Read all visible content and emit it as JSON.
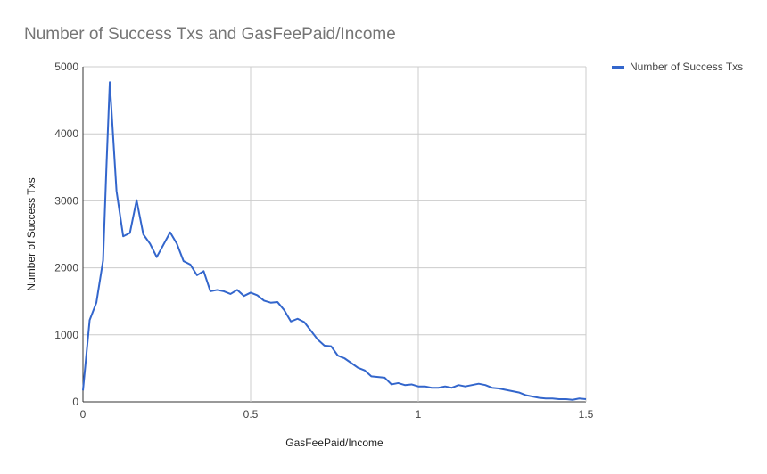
{
  "chart_data": {
    "type": "line",
    "title": "Number of Success Txs and GasFeePaid/Income",
    "xlabel": "GasFeePaid/Income",
    "ylabel": "Number of Success Txs",
    "xlim": [
      0,
      1.5
    ],
    "ylim": [
      0,
      5000
    ],
    "x_ticks": [
      "0",
      "0.5",
      "1",
      "1.5"
    ],
    "y_ticks": [
      "0",
      "1000",
      "2000",
      "3000",
      "4000",
      "5000"
    ],
    "grid": true,
    "legend_position": "right",
    "series": [
      {
        "name": "Number of Success Txs",
        "color": "#3366cc",
        "x": [
          0,
          0.02,
          0.04,
          0.06,
          0.07,
          0.08,
          0.1,
          0.12,
          0.14,
          0.16,
          0.18,
          0.2,
          0.22,
          0.26,
          0.28,
          0.3,
          0.32,
          0.34,
          0.36,
          0.38,
          0.4,
          0.42,
          0.44,
          0.46,
          0.48,
          0.5,
          0.52,
          0.54,
          0.56,
          0.58,
          0.6,
          0.62,
          0.64,
          0.66,
          0.68,
          0.7,
          0.72,
          0.74,
          0.76,
          0.78,
          0.8,
          0.82,
          0.84,
          0.86,
          0.88,
          0.9,
          0.92,
          0.94,
          0.96,
          0.98,
          1.0,
          1.02,
          1.04,
          1.06,
          1.08,
          1.1,
          1.12,
          1.14,
          1.16,
          1.18,
          1.2,
          1.22,
          1.24,
          1.26,
          1.28,
          1.3,
          1.32,
          1.34,
          1.36,
          1.38,
          1.4,
          1.42,
          1.44,
          1.46,
          1.48,
          1.5
        ],
        "values": [
          170,
          1220,
          1480,
          2110,
          3500,
          4770,
          3150,
          2470,
          2520,
          3010,
          2500,
          2360,
          2160,
          2530,
          2360,
          2100,
          2050,
          1890,
          1950,
          1650,
          1670,
          1650,
          1610,
          1670,
          1580,
          1630,
          1590,
          1510,
          1480,
          1490,
          1370,
          1200,
          1240,
          1190,
          1060,
          930,
          840,
          830,
          690,
          650,
          580,
          510,
          470,
          380,
          370,
          360,
          260,
          280,
          250,
          260,
          230,
          230,
          210,
          210,
          230,
          210,
          250,
          230,
          250,
          270,
          250,
          210,
          200,
          180,
          160,
          140,
          100,
          80,
          60,
          50,
          50,
          40,
          40,
          30,
          50,
          40
        ]
      }
    ]
  }
}
